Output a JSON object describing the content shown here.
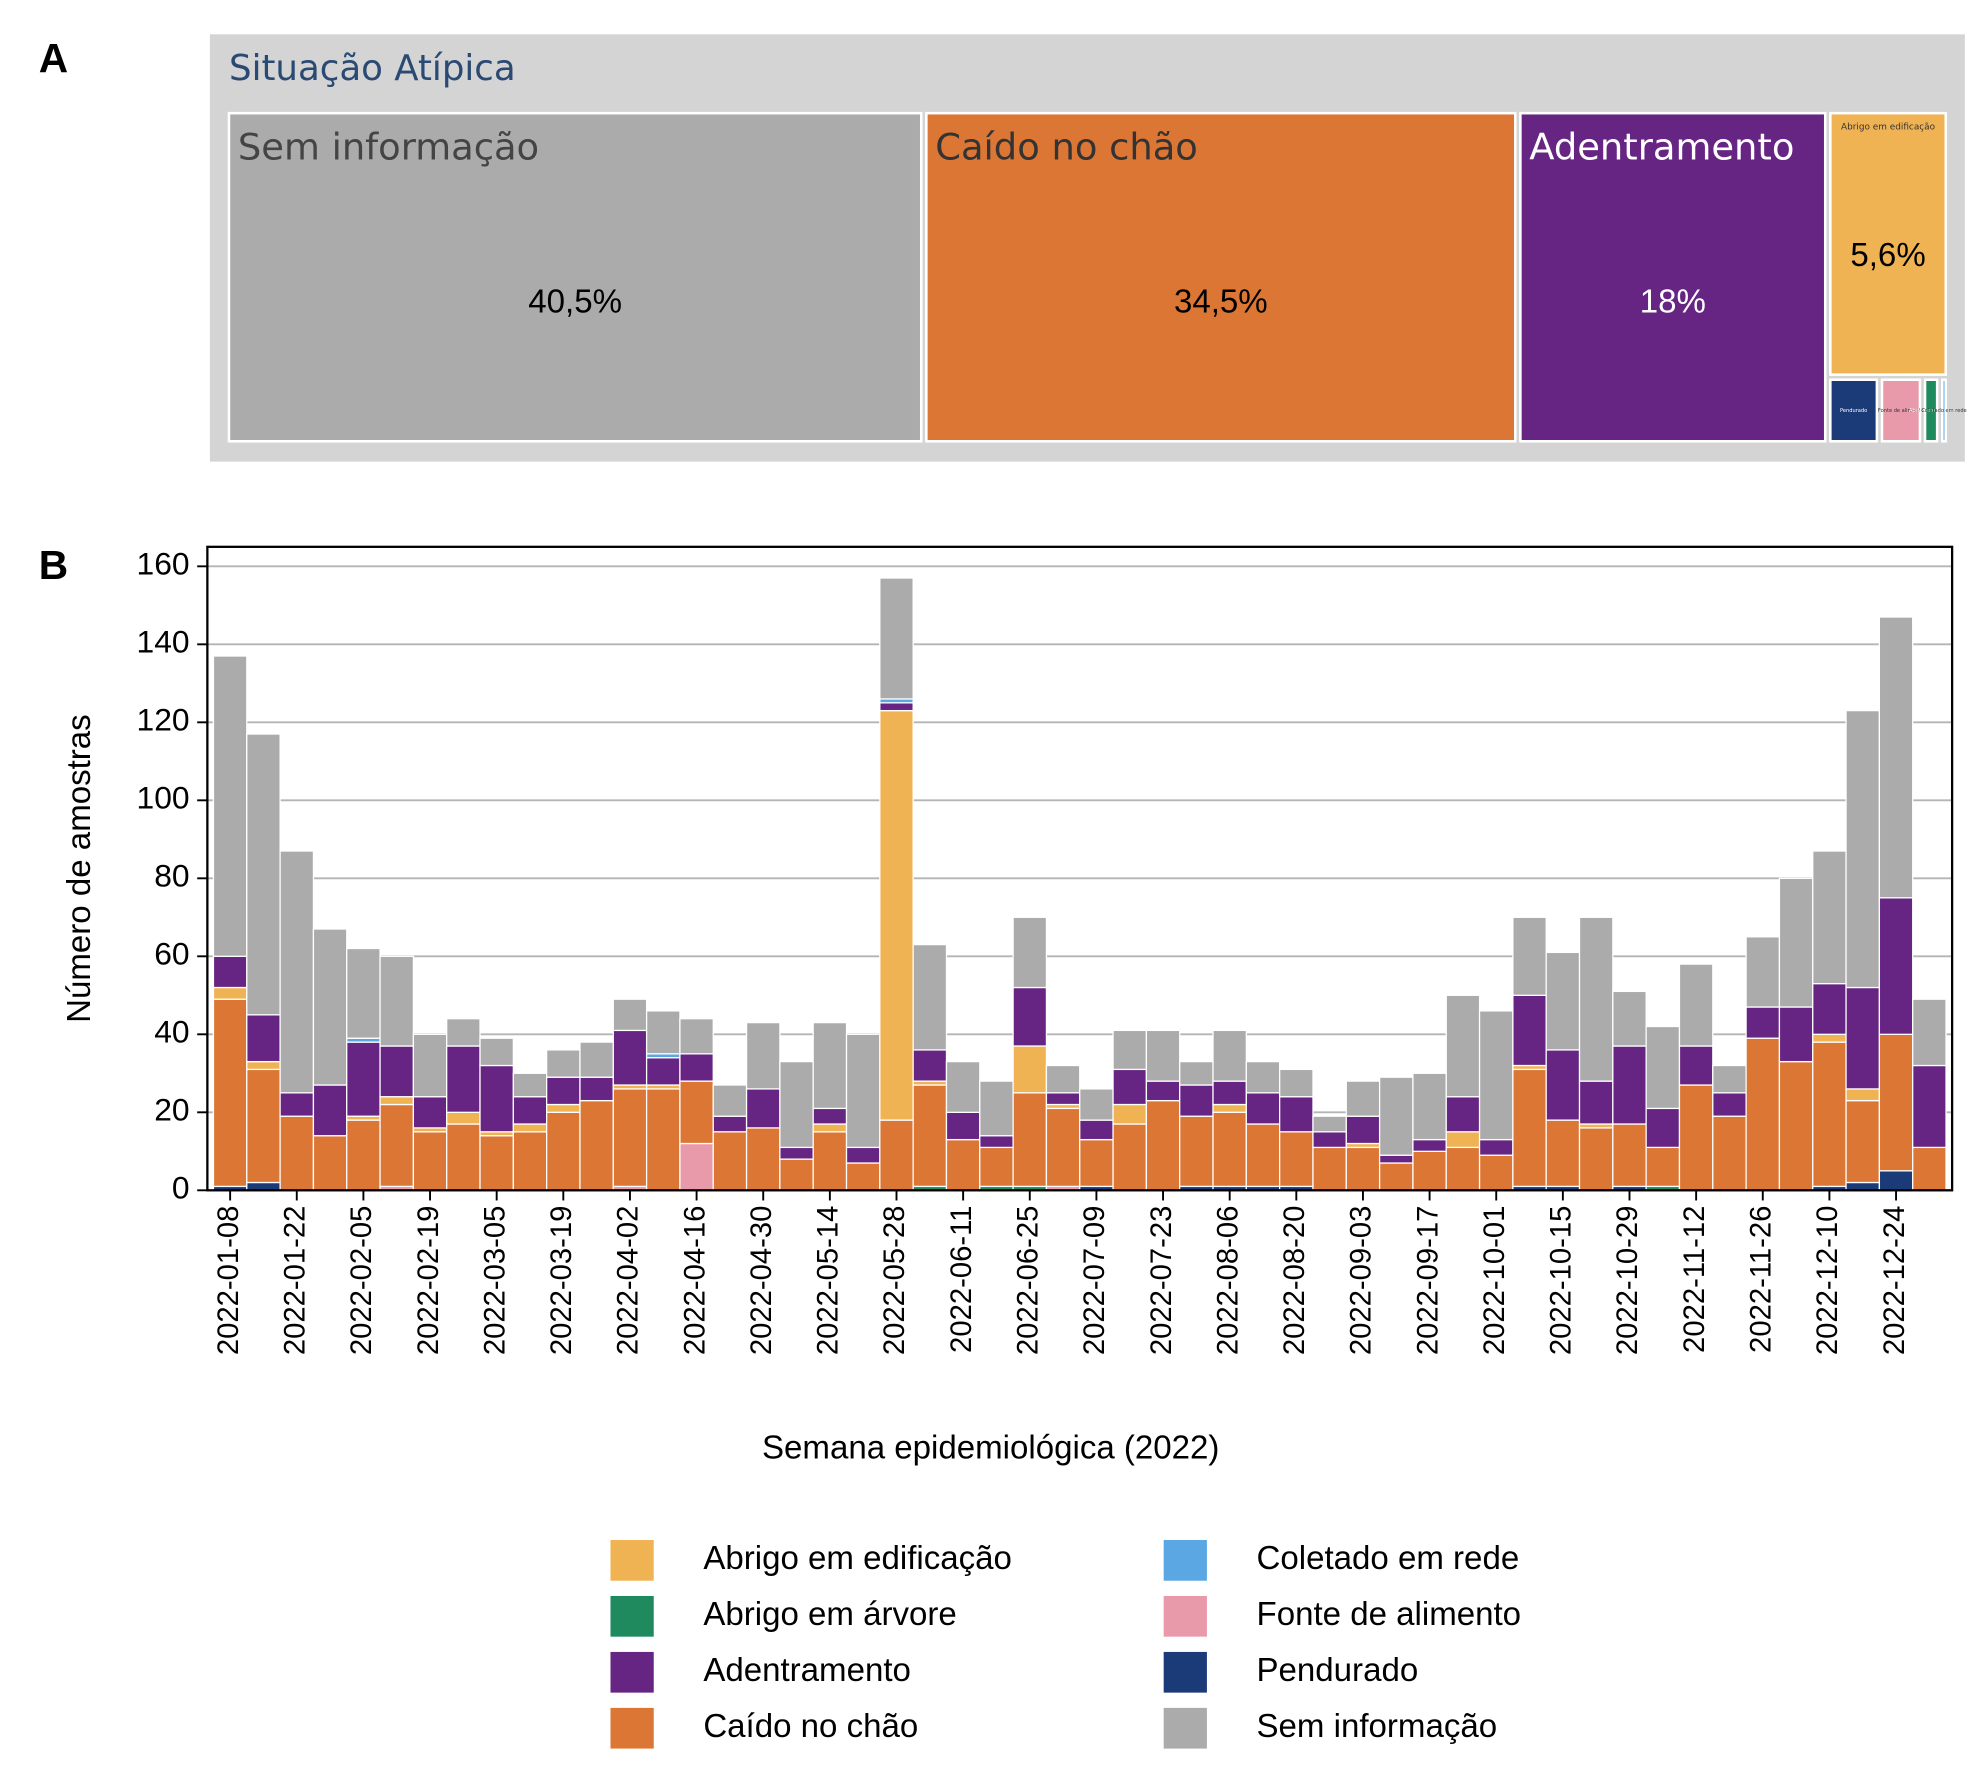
{
  "panel_labels": [
    "A",
    "B"
  ],
  "chart_data": [
    {
      "type": "treemap",
      "title": "Situação Atípica",
      "categories": [
        "Sem informação",
        "Caído no chão",
        "Adentramento",
        "Abrigo em edificação",
        "Pendurado",
        "Fonte de alimento",
        "Abrigo em árvore",
        "Coletado em rede"
      ],
      "values": [
        40.5,
        34.5,
        18,
        5.6,
        0.6,
        0.5,
        0.2,
        0.1
      ],
      "value_labels": [
        "40,5%",
        "34,5%",
        "18%",
        "5,6%",
        null,
        null,
        null,
        null
      ],
      "colors": [
        "#ababab",
        "#dc7634",
        "#662483",
        "#f0b354",
        "#1b3a78",
        "#e89aab",
        "#1e8a5e",
        "#5aa7e3"
      ]
    },
    {
      "type": "stacked_bar",
      "x_label": "Semana epidemiológica (2022)",
      "y_label": "Número de amostras",
      "categories": [
        "2022-01-08",
        null,
        "2022-01-22",
        null,
        "2022-02-05",
        null,
        "2022-02-19",
        null,
        "2022-03-05",
        null,
        "2022-03-19",
        null,
        "2022-04-02",
        null,
        "2022-04-16",
        null,
        "2022-04-30",
        null,
        "2022-05-14",
        null,
        "2022-05-28",
        null,
        "2022-06-11",
        null,
        "2022-06-25",
        null,
        "2022-07-09",
        null,
        "2022-07-23",
        null,
        "2022-08-06",
        null,
        "2022-08-20",
        null,
        "2022-09-03",
        null,
        "2022-09-17",
        null,
        "2022-10-01",
        null,
        "2022-10-15",
        null,
        "2022-10-29",
        null,
        "2022-11-12",
        null,
        "2022-11-26",
        null,
        "2022-12-10",
        null,
        "2022-12-24",
        null
      ],
      "ylim": [
        0,
        165
      ],
      "yticks": [
        0,
        20,
        40,
        60,
        80,
        100,
        120,
        140,
        160
      ],
      "grid": true,
      "series": [
        {
          "name": "Abrigo em edificação",
          "color": "#f0b354",
          "values": [
            3,
            2,
            0,
            0,
            1,
            2,
            1,
            3,
            1,
            2,
            2,
            0,
            1,
            1,
            0,
            0,
            0,
            0,
            2,
            0,
            105,
            1,
            0,
            0,
            12,
            1,
            0,
            5,
            0,
            0,
            2,
            0,
            0,
            0,
            1,
            0,
            0,
            4,
            0,
            1,
            0,
            1,
            0,
            0,
            0,
            0,
            0,
            0,
            2,
            3,
            0,
            0
          ]
        },
        {
          "name": "Abrigo em árvore",
          "color": "#1e8a5e",
          "values": [
            0,
            0,
            0,
            0,
            0,
            0,
            0,
            0,
            0,
            0,
            0,
            0,
            0,
            0,
            0,
            0,
            0,
            0,
            0,
            0,
            0,
            1,
            0,
            1,
            1,
            0,
            0,
            0,
            0,
            0,
            0,
            0,
            0,
            0,
            0,
            0,
            0,
            0,
            0,
            0,
            0,
            0,
            0,
            1,
            0,
            0,
            0,
            0,
            0,
            0,
            0,
            0
          ]
        },
        {
          "name": "Adentramento",
          "color": "#662483",
          "values": [
            8,
            12,
            6,
            13,
            19,
            13,
            8,
            17,
            17,
            7,
            7,
            6,
            14,
            7,
            7,
            4,
            10,
            3,
            4,
            4,
            2,
            8,
            7,
            3,
            15,
            3,
            5,
            9,
            5,
            8,
            6,
            8,
            9,
            4,
            7,
            2,
            3,
            9,
            4,
            18,
            18,
            11,
            20,
            10,
            10,
            6,
            8,
            14,
            13,
            26,
            35,
            21
          ]
        },
        {
          "name": "Caído no chão",
          "color": "#dc7634",
          "values": [
            48,
            29,
            19,
            14,
            18,
            21,
            15,
            17,
            14,
            15,
            20,
            23,
            25,
            26,
            16,
            15,
            16,
            8,
            15,
            7,
            18,
            26,
            13,
            10,
            24,
            20,
            12,
            17,
            23,
            18,
            19,
            16,
            14,
            11,
            11,
            7,
            10,
            11,
            9,
            30,
            17,
            16,
            16,
            10,
            27,
            19,
            39,
            33,
            37,
            21,
            35,
            11
          ]
        },
        {
          "name": "Coletado em rede",
          "color": "#5aa7e3",
          "values": [
            0,
            0,
            0,
            0,
            1,
            0,
            0,
            0,
            0,
            0,
            0,
            0,
            0,
            1,
            0,
            0,
            0,
            0,
            0,
            0,
            1,
            0,
            0,
            0,
            0,
            0,
            0,
            0,
            0,
            0,
            0,
            0,
            0,
            0,
            0,
            0,
            0,
            0,
            0,
            0,
            0,
            0,
            0,
            0,
            0,
            0,
            0,
            0,
            0,
            0,
            0,
            0
          ]
        },
        {
          "name": "Fonte de alimento",
          "color": "#e89aab",
          "values": [
            0,
            0,
            0,
            0,
            0,
            1,
            0,
            0,
            0,
            0,
            0,
            0,
            1,
            0,
            12,
            0,
            0,
            0,
            0,
            0,
            0,
            0,
            0,
            0,
            0,
            1,
            0,
            0,
            0,
            0,
            0,
            0,
            0,
            0,
            0,
            0,
            0,
            0,
            0,
            0,
            0,
            0,
            0,
            0,
            0,
            0,
            0,
            0,
            0,
            0,
            0,
            0
          ]
        },
        {
          "name": "Pendurado",
          "color": "#1b3a78",
          "values": [
            1,
            2,
            0,
            0,
            0,
            0,
            0,
            0,
            0,
            0,
            0,
            0,
            0,
            0,
            0,
            0,
            0,
            0,
            0,
            0,
            0,
            0,
            0,
            0,
            0,
            0,
            1,
            0,
            0,
            1,
            1,
            1,
            1,
            0,
            0,
            0,
            0,
            0,
            0,
            1,
            1,
            0,
            1,
            0,
            0,
            0,
            0,
            0,
            1,
            2,
            5,
            0
          ]
        },
        {
          "name": "Sem informação",
          "color": "#ababab",
          "values": [
            77,
            72,
            62,
            40,
            23,
            23,
            16,
            7,
            7,
            6,
            7,
            9,
            8,
            11,
            9,
            8,
            17,
            22,
            22,
            29,
            31,
            27,
            13,
            14,
            18,
            7,
            8,
            10,
            13,
            6,
            13,
            8,
            7,
            4,
            9,
            20,
            17,
            26,
            33,
            20,
            25,
            42,
            14,
            21,
            21,
            7,
            18,
            33,
            34,
            71,
            72,
            17
          ]
        }
      ]
    }
  ]
}
